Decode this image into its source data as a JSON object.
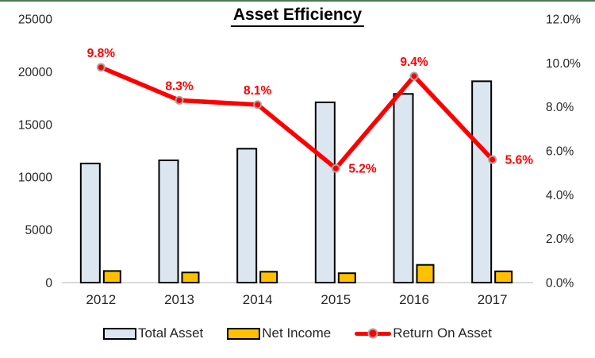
{
  "page": {
    "top_border_color": "#4a7a4f",
    "background": "#ffffff"
  },
  "chart_data": {
    "type": "combo-bar-line",
    "title": "Asset Efficiency",
    "categories": [
      "2012",
      "2013",
      "2014",
      "2015",
      "2016",
      "2017"
    ],
    "series": [
      {
        "name": "Total Asset",
        "type": "bar",
        "axis": "left",
        "values": [
          11300,
          11600,
          12700,
          17100,
          17900,
          19100
        ],
        "fill": "#dce6f1",
        "border": "#000000"
      },
      {
        "name": "Net Income",
        "type": "bar",
        "axis": "left",
        "values": [
          1100,
          960,
          1030,
          890,
          1680,
          1070
        ],
        "fill": "#ffc000",
        "border": "#000000"
      },
      {
        "name": "Return On Asset",
        "type": "line",
        "axis": "right",
        "values": [
          9.8,
          8.3,
          8.1,
          5.2,
          9.4,
          5.6
        ],
        "data_labels": [
          "9.8%",
          "8.3%",
          "8.1%",
          "5.2%",
          "9.4%",
          "5.6%"
        ],
        "label_positions": [
          "above",
          "above",
          "above",
          "right",
          "above",
          "right"
        ],
        "color": "#ff0000",
        "marker_ring": "#a6a6a6"
      }
    ],
    "left_axis": {
      "min": 0,
      "max": 25000,
      "tick_labels": [
        "25000",
        "20000",
        "15000",
        "10000",
        "5000",
        "0"
      ]
    },
    "right_axis": {
      "min": 0,
      "max": 12,
      "tick_labels": [
        "12.0%",
        "10.0%",
        "8.0%",
        "6.0%",
        "4.0%",
        "2.0%",
        "0.0%"
      ]
    },
    "grid": "off",
    "axis_line_color": "#d9d9d9",
    "text_color": "#262626",
    "legend": {
      "position": "bottom",
      "items": [
        {
          "label": "Total Asset"
        },
        {
          "label": "Net Income"
        },
        {
          "label": "Return On Asset"
        }
      ]
    }
  }
}
